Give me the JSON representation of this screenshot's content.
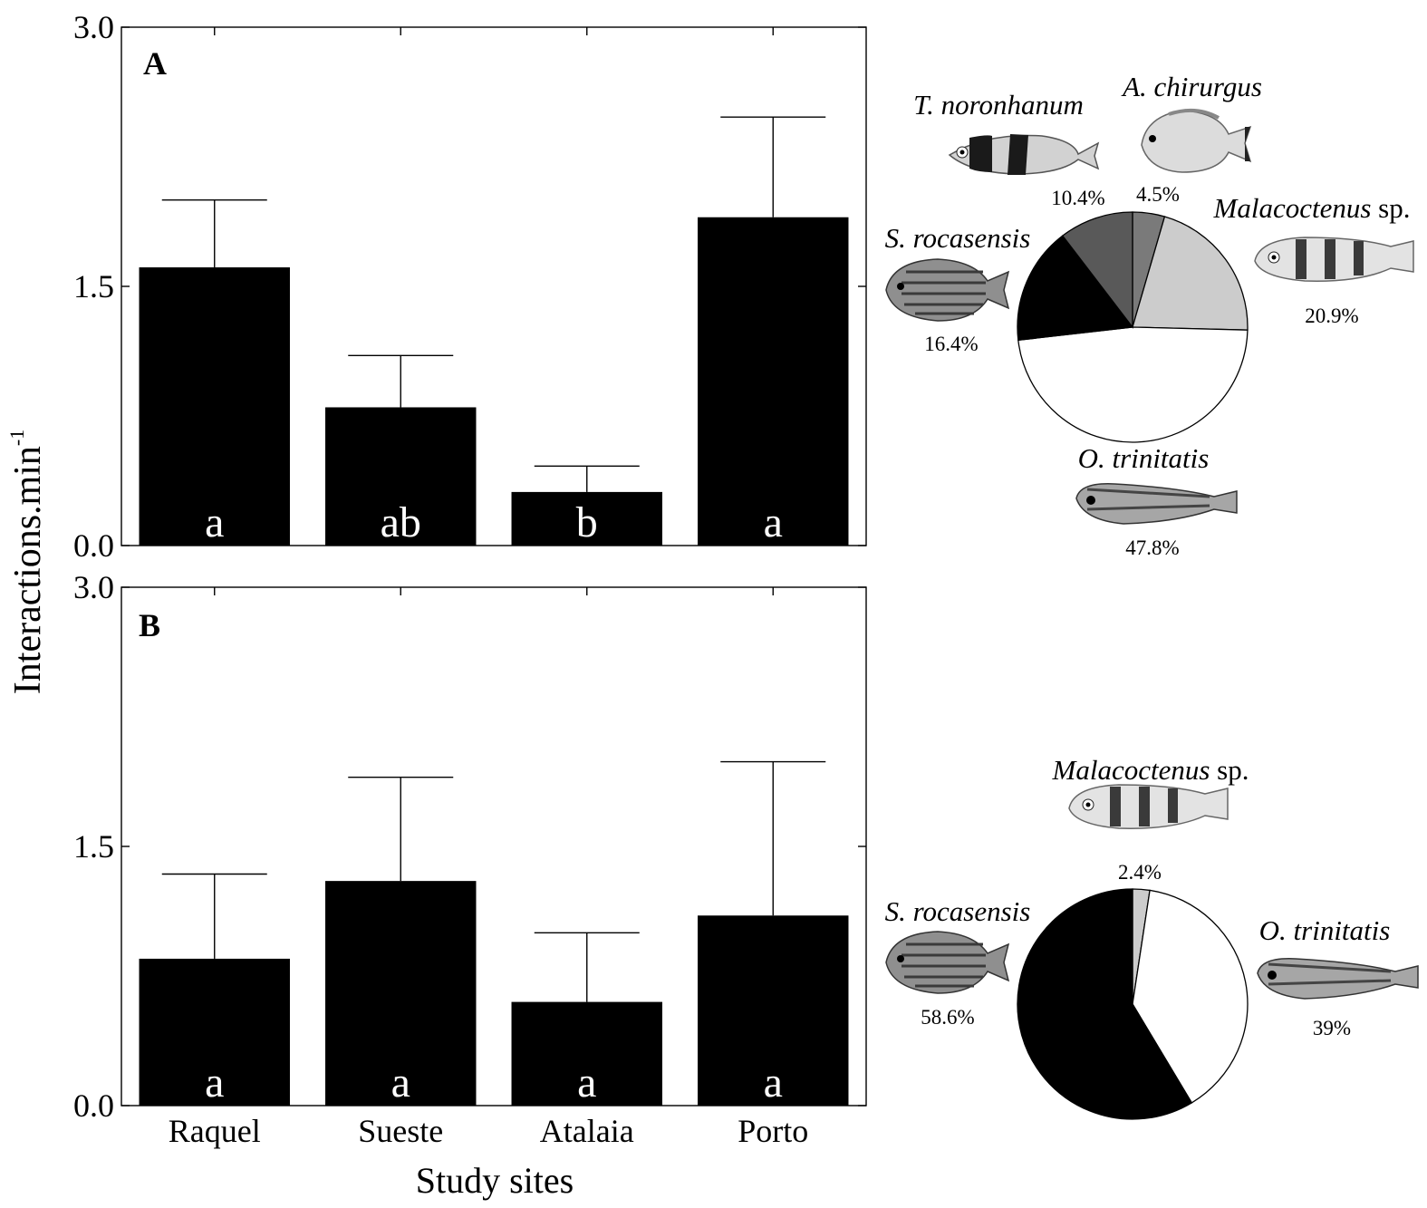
{
  "ylabel": "Interactions.min",
  "ylabel_sup": "-1",
  "xlabel": "Study sites",
  "colors": {
    "bar": "#000000",
    "pie_stroke": "#000000",
    "letter": "#ffffff"
  },
  "chart_data": [
    {
      "type": "bar",
      "panel": "A",
      "categories": [
        "Raquel",
        "Sueste",
        "Atalaia",
        "Porto"
      ],
      "values": [
        1.61,
        0.8,
        0.31,
        1.9
      ],
      "error_upper": [
        2.0,
        1.1,
        0.46,
        2.48
      ],
      "letters": [
        "a",
        "ab",
        "b",
        "a"
      ],
      "ylim": [
        0,
        3.0
      ],
      "yticks": [
        "0.0",
        "1.5",
        "3.0"
      ],
      "show_xticklabels": false,
      "grid": false
    },
    {
      "type": "bar",
      "panel": "B",
      "categories": [
        "Raquel",
        "Sueste",
        "Atalaia",
        "Porto"
      ],
      "values": [
        0.85,
        1.3,
        0.6,
        1.1
      ],
      "error_upper": [
        1.34,
        1.9,
        1.0,
        1.99
      ],
      "letters": [
        "a",
        "a",
        "a",
        "a"
      ],
      "ylim": [
        0,
        3.0
      ],
      "yticks": [
        "0.0",
        "1.5",
        "3.0"
      ],
      "show_xticklabels": true,
      "grid": false
    },
    {
      "type": "pie",
      "panel": "A",
      "slices": [
        {
          "species": "A. chirurgus",
          "species_suffix": "",
          "percent_label": "4.5%",
          "value": 4.5,
          "color": "#7a7a7a"
        },
        {
          "species": "Malacoctenus",
          "species_suffix": " sp.",
          "percent_label": "20.9%",
          "value": 20.9,
          "color": "#cccccc"
        },
        {
          "species": "O. trinitatis",
          "species_suffix": "",
          "percent_label": "47.8%",
          "value": 47.8,
          "color": "#ffffff"
        },
        {
          "species": "S. rocasensis",
          "species_suffix": "",
          "percent_label": "16.4%",
          "value": 16.4,
          "color": "#000000"
        },
        {
          "species": "T. noronhanum",
          "species_suffix": "",
          "percent_label": "10.4%",
          "value": 10.4,
          "color": "#595959"
        }
      ]
    },
    {
      "type": "pie",
      "panel": "B",
      "slices": [
        {
          "species": "Malacoctenus",
          "species_suffix": " sp.",
          "percent_label": "2.4%",
          "value": 2.4,
          "color": "#cccccc"
        },
        {
          "species": "O. trinitatis",
          "species_suffix": "",
          "percent_label": "39%",
          "value": 39,
          "color": "#ffffff"
        },
        {
          "species": "S. rocasensis",
          "species_suffix": "",
          "percent_label": "58.6%",
          "value": 58.6,
          "color": "#000000"
        }
      ]
    }
  ]
}
